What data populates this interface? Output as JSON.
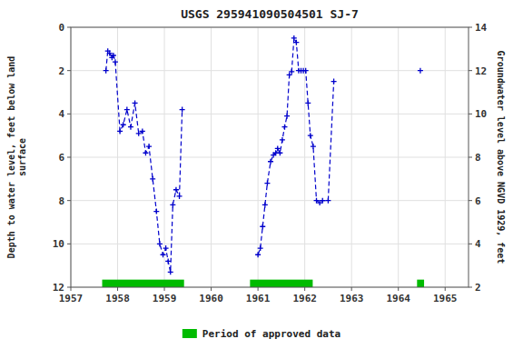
{
  "chart_data": {
    "type": "line",
    "title": "USGS 295941090504501 SJ-7",
    "ylabel": "Depth to water level, feet below land\nsurface",
    "y2label": "Groundwater level above NGVD 1929, feet",
    "xlim": [
      1957,
      1965.5
    ],
    "ylim": [
      12,
      0
    ],
    "y2lim": [
      2,
      14
    ],
    "xticks": [
      1957,
      1958,
      1959,
      1960,
      1961,
      1962,
      1963,
      1964,
      1965
    ],
    "yticks": [
      0,
      2,
      4,
      6,
      8,
      10,
      12
    ],
    "y2ticks": [
      2,
      4,
      6,
      8,
      10,
      12,
      14
    ],
    "grid": true,
    "legend": "bottom",
    "series": [
      {
        "color": "#0000CC",
        "line_style": "dashed",
        "marker": "plus",
        "x": [
          1957.75,
          1957.79,
          1957.83,
          1957.88,
          1957.91,
          1957.95,
          1958.05,
          1958.12,
          1958.2,
          1958.28,
          1958.37,
          1958.45,
          1958.53,
          1958.6,
          1958.67,
          1958.75,
          1958.83,
          1958.9,
          1958.97,
          1959.03,
          1959.08,
          1959.13,
          1959.18,
          1959.25,
          1959.32,
          1959.38
        ],
        "values": [
          2.0,
          1.1,
          1.2,
          1.4,
          1.3,
          1.6,
          4.8,
          4.5,
          3.8,
          4.6,
          3.5,
          4.9,
          4.8,
          5.8,
          5.5,
          7.0,
          8.5,
          10.0,
          10.5,
          10.2,
          10.8,
          11.3,
          8.2,
          7.5,
          7.8,
          3.8
        ]
      },
      {
        "color": "#0000CC",
        "line_style": "dashed",
        "marker": "plus",
        "x": [
          1961.0,
          1961.05,
          1961.1,
          1961.15,
          1961.2,
          1961.27,
          1961.33,
          1961.38,
          1961.42,
          1961.47,
          1961.52,
          1961.57,
          1961.62,
          1961.67,
          1961.72,
          1961.77,
          1961.82,
          1961.87,
          1961.92,
          1961.97,
          1962.02,
          1962.07,
          1962.12,
          1962.18,
          1962.25,
          1962.32,
          1962.38,
          1962.5,
          1962.62
        ],
        "values": [
          10.5,
          10.2,
          9.2,
          8.2,
          7.2,
          6.2,
          5.9,
          5.8,
          5.6,
          5.8,
          5.2,
          4.6,
          4.1,
          2.2,
          2.05,
          0.5,
          0.7,
          2.0,
          2.0,
          2.0,
          2.0,
          3.5,
          5.0,
          5.5,
          8.0,
          8.1,
          8.0,
          8.0,
          2.5
        ]
      },
      {
        "color": "#0000CC",
        "line_style": "dashed",
        "marker": "plus",
        "x": [
          1964.47
        ],
        "values": [
          2.0
        ]
      }
    ],
    "band_name": "Period of approved data",
    "band_color": "#00bb00",
    "band_y": [
      11.65,
      12.0
    ],
    "bands": [
      {
        "start": 1957.67,
        "end": 1959.42
      },
      {
        "start": 1960.83,
        "end": 1962.17
      },
      {
        "start": 1964.4,
        "end": 1964.55
      }
    ]
  }
}
